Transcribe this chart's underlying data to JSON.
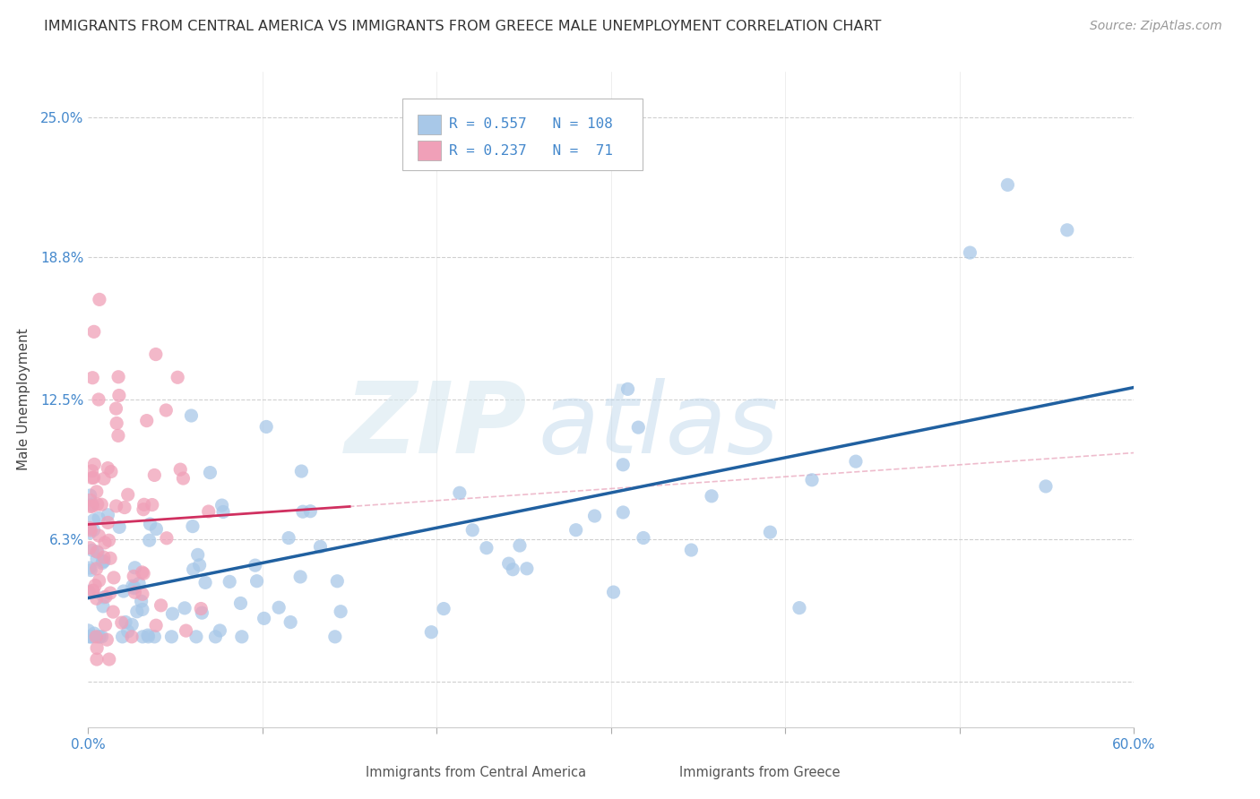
{
  "title": "IMMIGRANTS FROM CENTRAL AMERICA VS IMMIGRANTS FROM GREECE MALE UNEMPLOYMENT CORRELATION CHART",
  "source": "Source: ZipAtlas.com",
  "ylabel": "Male Unemployment",
  "xlim": [
    0.0,
    0.6
  ],
  "ylim": [
    -0.02,
    0.27
  ],
  "ytick_vals": [
    0.0,
    0.063,
    0.125,
    0.188,
    0.25
  ],
  "ytick_labels": [
    "",
    "6.3%",
    "12.5%",
    "18.8%",
    "25.0%"
  ],
  "xtick_vals": [
    0.0,
    0.1,
    0.2,
    0.3,
    0.4,
    0.5,
    0.6
  ],
  "xtick_labels_bottom": [
    "0.0%",
    "",
    "",
    "",
    "",
    "",
    "60.0%"
  ],
  "series1_color": "#a8c8e8",
  "series2_color": "#f0a0b8",
  "trendline1_color": "#2060a0",
  "trendline2_color": "#d03060",
  "trendline2_dashed_color": "#e8a0b8",
  "R1": 0.557,
  "N1": 108,
  "R2": 0.237,
  "N2": 71,
  "legend_label1": "Immigrants from Central America",
  "legend_label2": "Immigrants from Greece",
  "background_color": "#ffffff",
  "grid_color": "#d0d0d0",
  "title_color": "#333333",
  "source_color": "#999999",
  "axis_label_color": "#4488cc",
  "tick_color": "#888888"
}
